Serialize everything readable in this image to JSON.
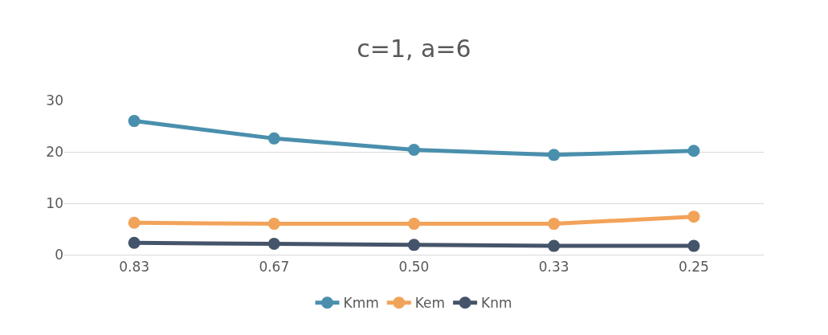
{
  "chart_data": {
    "type": "line",
    "title": "c=1, a=6",
    "categories": [
      "0.83",
      "0.67",
      "0.50",
      "0.33",
      "0.25"
    ],
    "series": [
      {
        "name": "Kmm",
        "color": "#4a8fad",
        "values": [
          26.0,
          22.6,
          20.4,
          19.4,
          20.2
        ]
      },
      {
        "name": "Kem",
        "color": "#f2a35a",
        "values": [
          6.2,
          6.0,
          6.0,
          6.0,
          7.4
        ]
      },
      {
        "name": "Knm",
        "color": "#44546a",
        "values": [
          2.3,
          2.1,
          1.9,
          1.7,
          1.7
        ]
      }
    ],
    "ylim": [
      0,
      30
    ],
    "yticks": [
      0,
      10,
      20,
      30
    ],
    "grid": "y",
    "legend": "bottom",
    "marker": "circle",
    "line_style": "solid"
  }
}
